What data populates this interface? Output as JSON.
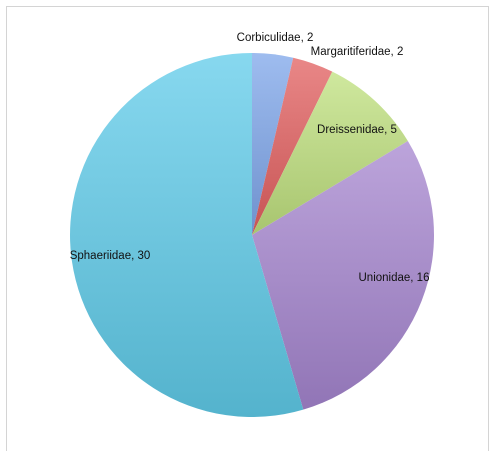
{
  "chart_data": {
    "type": "pie",
    "slices": [
      {
        "label": "Corbiculidae",
        "value": 2,
        "display": "Corbiculidae, 2",
        "color": "#7ea6ea"
      },
      {
        "label": "Margaritiferidae",
        "value": 2,
        "display": "Margaritiferidae, 2",
        "color": "#e25f5f"
      },
      {
        "label": "Dreissenidae",
        "value": 5,
        "display": "Dreissenidae, 5",
        "color": "#bfe07e"
      },
      {
        "label": "Unionidae",
        "value": 16,
        "display": "Unionidae, 16",
        "color": "#a585cf"
      },
      {
        "label": "Sphaeriidae",
        "value": 30,
        "display": "Sphaeriidae, 30",
        "color": "#5fcbe9"
      }
    ],
    "title": "",
    "legend": "none",
    "start_angle": "12 o'clock",
    "direction": "clockwise"
  }
}
